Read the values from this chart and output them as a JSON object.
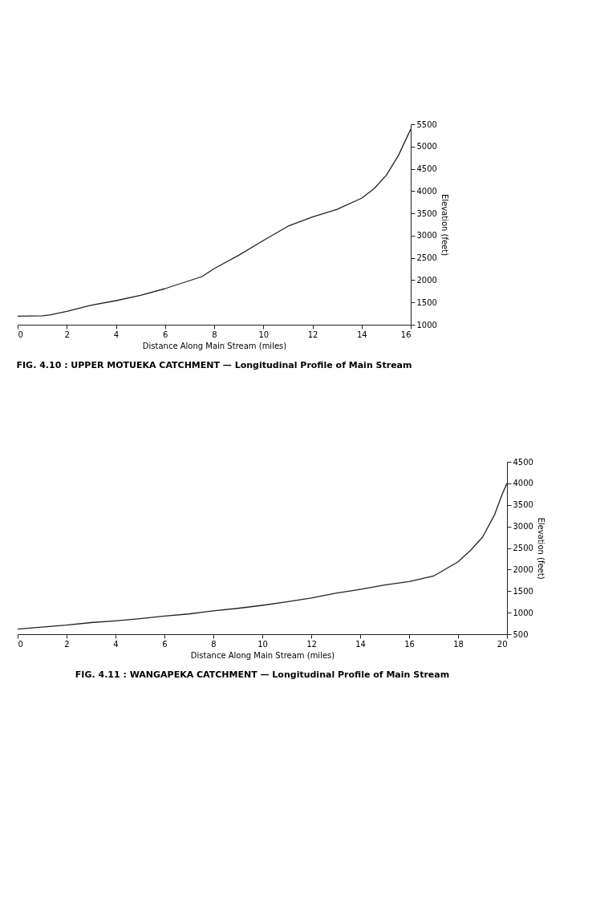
{
  "chart_data": [
    {
      "type": "line",
      "title": "FIG. 4.10 : UPPER MOTUEKA CATCHMENT — Longitudinal Profile of Main Stream",
      "xlabel": "Distance Along Main Stream (miles)",
      "ylabel": "Elevation (feet)",
      "x": [
        0,
        1,
        1.3,
        2,
        3,
        4,
        5,
        6,
        7,
        7.5,
        8,
        9,
        10,
        11,
        12,
        13,
        14,
        14.5,
        15,
        15.5,
        16
      ],
      "series": [
        {
          "color": "#222222",
          "values": [
            1190,
            1200,
            1220,
            1300,
            1440,
            1540,
            1660,
            1810,
            1990,
            2080,
            2260,
            2560,
            2890,
            3210,
            3420,
            3590,
            3840,
            4050,
            4350,
            4800,
            5390
          ]
        }
      ],
      "xlim": [
        0,
        16
      ],
      "xticks": [
        0,
        2,
        4,
        6,
        8,
        10,
        12,
        14,
        16
      ],
      "ylim": [
        1000,
        5500
      ],
      "yticks": [
        1000,
        1500,
        2000,
        2500,
        3000,
        3500,
        4000,
        4500,
        5000,
        5500
      ],
      "grid": false,
      "marker": "none",
      "line_style": "solid"
    },
    {
      "type": "line",
      "title": "FIG. 4.11 : WANGAPEKA CATCHMENT — Longitudinal Profile of Main Stream",
      "xlabel": "Distance Along Main Stream (miles)",
      "ylabel": "Elevation (feet)",
      "x": [
        0,
        2,
        3,
        4,
        5,
        6,
        7,
        8,
        9,
        10,
        11,
        12,
        13,
        14,
        15,
        16,
        17,
        18,
        18.5,
        19,
        19.5,
        19.8,
        20
      ],
      "series": [
        {
          "color": "#222222",
          "values": [
            620,
            710,
            770,
            810,
            860,
            920,
            970,
            1040,
            1100,
            1170,
            1250,
            1340,
            1450,
            1540,
            1640,
            1720,
            1850,
            2180,
            2440,
            2750,
            3280,
            3740,
            4000
          ]
        }
      ],
      "xlim": [
        0,
        20
      ],
      "xticks": [
        0,
        2,
        4,
        6,
        8,
        10,
        12,
        14,
        16,
        18,
        20
      ],
      "ylim": [
        500,
        4500
      ],
      "yticks": [
        500,
        1000,
        1500,
        2000,
        2500,
        3000,
        3500,
        4000,
        4500
      ],
      "grid": false,
      "marker": "none",
      "line_style": "solid"
    }
  ]
}
